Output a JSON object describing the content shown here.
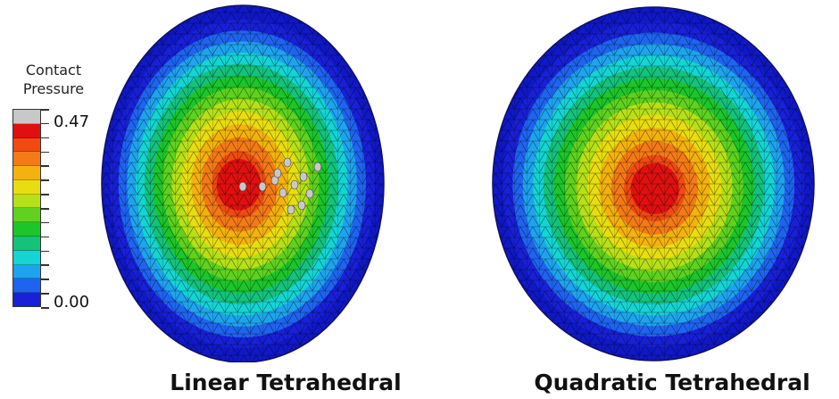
{
  "legend": {
    "title_line1": "Contact",
    "title_line2": "Pressure",
    "max_label": "0.47",
    "min_label": "0.00",
    "colors": [
      "#c8c8c8",
      "#e01010",
      "#f04a10",
      "#f47a16",
      "#f4b20e",
      "#e8dd10",
      "#b6e018",
      "#5ed21e",
      "#1cc52a",
      "#14c27c",
      "#14d4d4",
      "#1ea4ee",
      "#1e64f0",
      "#1820d8"
    ]
  },
  "panels": [
    {
      "caption": "Linear Tetrahedral"
    },
    {
      "caption": "Quadratic Tetrahedral"
    }
  ]
}
